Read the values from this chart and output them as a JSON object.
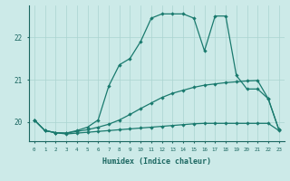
{
  "xlabel": "Humidex (Indice chaleur)",
  "bg_color": "#cceae8",
  "line_color": "#1a7a6e",
  "grid_color": "#aad4d0",
  "axis_label_color": "#1a6660",
  "xlim": [
    -0.5,
    23.5
  ],
  "ylim": [
    19.55,
    22.75
  ],
  "yticks": [
    20,
    21,
    22
  ],
  "xticks": [
    0,
    1,
    2,
    3,
    4,
    5,
    6,
    7,
    8,
    9,
    10,
    11,
    12,
    13,
    14,
    15,
    16,
    17,
    18,
    19,
    20,
    21,
    22,
    23
  ],
  "line1_x": [
    0,
    1,
    2,
    3,
    4,
    5,
    6,
    7,
    8,
    9,
    10,
    11,
    12,
    13,
    14,
    15,
    16,
    17,
    18,
    19,
    20,
    21,
    22,
    23
  ],
  "line1_y": [
    20.05,
    19.8,
    19.75,
    19.72,
    19.74,
    19.76,
    19.78,
    19.8,
    19.82,
    19.84,
    19.86,
    19.88,
    19.9,
    19.92,
    19.94,
    19.96,
    19.97,
    19.97,
    19.97,
    19.97,
    19.97,
    19.97,
    19.97,
    19.8
  ],
  "line2_x": [
    0,
    1,
    2,
    3,
    4,
    5,
    6,
    7,
    8,
    9,
    10,
    11,
    12,
    13,
    14,
    15,
    16,
    17,
    18,
    19,
    20,
    21,
    22,
    23
  ],
  "line2_y": [
    20.05,
    19.8,
    19.75,
    19.74,
    19.78,
    19.82,
    19.88,
    19.95,
    20.05,
    20.18,
    20.32,
    20.45,
    20.58,
    20.68,
    20.75,
    20.82,
    20.87,
    20.9,
    20.93,
    20.95,
    20.97,
    20.98,
    20.55,
    19.82
  ],
  "line3_x": [
    0,
    1,
    2,
    3,
    4,
    5,
    6,
    7,
    8,
    9,
    10,
    11,
    12,
    13,
    14,
    15,
    16,
    17,
    18,
    19,
    20,
    21,
    22,
    23
  ],
  "line3_y": [
    20.05,
    19.8,
    19.75,
    19.74,
    19.8,
    19.88,
    20.05,
    20.85,
    21.35,
    21.5,
    21.9,
    22.45,
    22.55,
    22.55,
    22.55,
    22.45,
    21.68,
    22.5,
    22.5,
    21.1,
    20.78,
    20.78,
    20.55,
    19.82
  ]
}
